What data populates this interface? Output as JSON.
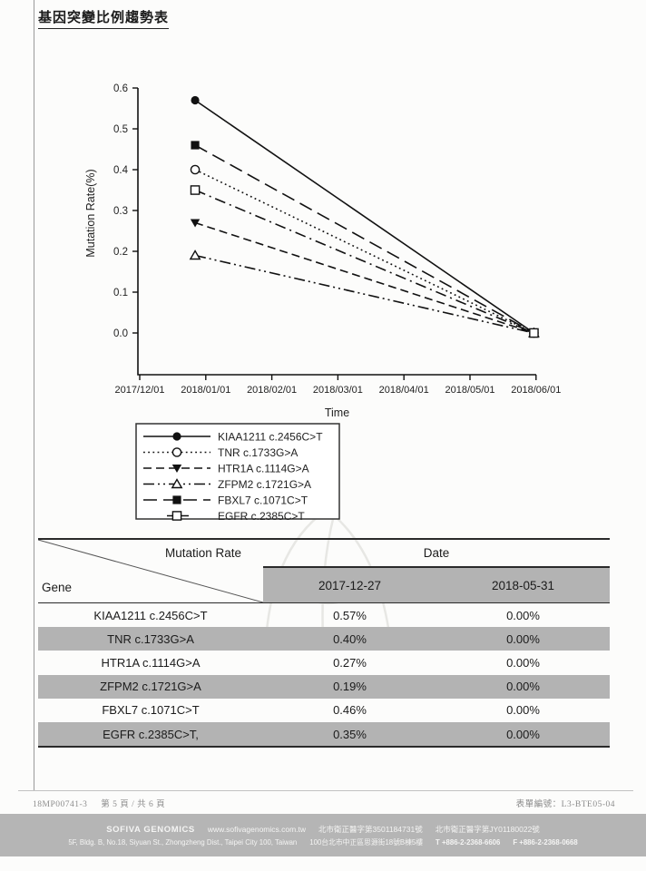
{
  "page": {
    "title": "基因突變比例趨勢表"
  },
  "chart_data": {
    "type": "line",
    "title": "",
    "xlabel": "Time",
    "ylabel": "Mutation Rate(%)",
    "x_tick_labels": [
      "2017/12/01",
      "2018/01/01",
      "2018/02/01",
      "2018/03/01",
      "2018/04/01",
      "2018/05/01",
      "2018/06/01"
    ],
    "y_ticks": [
      "0.0",
      "0.1",
      "0.2",
      "0.3",
      "0.4",
      "0.5",
      "0.6"
    ],
    "ylim": [
      0.0,
      0.6
    ],
    "grid": false,
    "legend_position": "below-left",
    "x_dates": [
      "2017-12-27",
      "2018-05-31"
    ],
    "series": [
      {
        "name": "KIAA1211 c.2456C>T",
        "values": [
          0.57,
          0.0
        ],
        "line": "solid",
        "marker": "circle-filled"
      },
      {
        "name": "TNR c.1733G>A",
        "values": [
          0.4,
          0.0
        ],
        "line": "dotted",
        "marker": "circle-open"
      },
      {
        "name": "HTR1A c.1114G>A",
        "values": [
          0.27,
          0.0
        ],
        "line": "dashed",
        "marker": "triangle-down-filled"
      },
      {
        "name": "ZFPM2 c.1721G>A",
        "values": [
          0.19,
          0.0
        ],
        "line": "dash-dot-dot",
        "marker": "triangle-up-open"
      },
      {
        "name": "FBXL7 c.1071C>T",
        "values": [
          0.46,
          0.0
        ],
        "line": "long-dash",
        "marker": "square-filled"
      },
      {
        "name": "EGFR c.2385C>T",
        "values": [
          0.35,
          0.0
        ],
        "line": "dash-dot",
        "marker": "square-open"
      }
    ]
  },
  "table": {
    "corner_top": "Mutation Rate",
    "corner_bottom": "Gene",
    "date_header": "Date",
    "date_columns": [
      "2017-12-27",
      "2018-05-31"
    ],
    "rows": [
      {
        "gene": "KIAA1211 c.2456C>T",
        "values": [
          "0.57%",
          "0.00%"
        ]
      },
      {
        "gene": "TNR c.1733G>A",
        "values": [
          "0.40%",
          "0.00%"
        ]
      },
      {
        "gene": "HTR1A c.1114G>A",
        "values": [
          "0.27%",
          "0.00%"
        ]
      },
      {
        "gene": "ZFPM2 c.1721G>A",
        "values": [
          "0.19%",
          "0.00%"
        ]
      },
      {
        "gene": "FBXL7 c.1071C>T",
        "values": [
          "0.46%",
          "0.00%"
        ]
      },
      {
        "gene": "EGFR c.2385C>T,",
        "values": [
          "0.35%",
          "0.00%"
        ]
      }
    ],
    "stripe_color": "#b3b3b3"
  },
  "footer": {
    "doc_id": "18MP00741-3",
    "page_info": "第 5 頁 / 共 6 頁",
    "form_no": "表單編號：L3-BTE05-04"
  },
  "banner": {
    "company": "SOFIVA GENOMICS",
    "website": "www.sofivagenomics.com.tw",
    "license1": "北市衛正醫字第3501184731號",
    "license2": "北市衛正醫字第JY01180022號",
    "address_en": "5F, Bldg. B, No.18, Siyuan St., Zhongzheng Dist., Taipei City 100, Taiwan",
    "address_zh": "100台北市中正區思源街18號B棟5樓",
    "tel": "T +886-2-2368-6606",
    "fax": "F +886-2-2368-0668"
  },
  "colors": {
    "ink": "#111111",
    "table_stripe": "#b3b3b3",
    "banner_bg": "#b5b5b5",
    "watermark": "#e7e7e4"
  }
}
